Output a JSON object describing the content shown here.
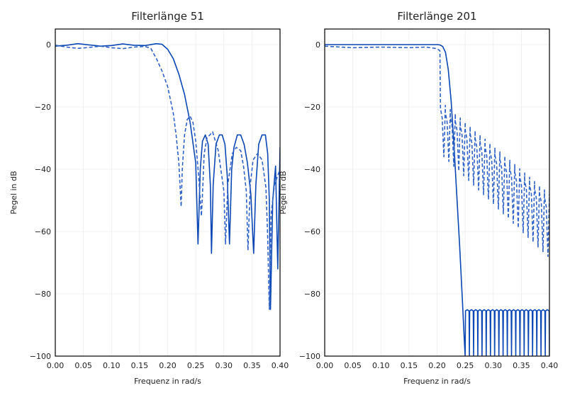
{
  "chart_data": [
    {
      "type": "line",
      "title": "Filterlänge 51",
      "xlabel": "Frequenz in rad/s",
      "ylabel": "Pegel in dB",
      "xlim": [
        0.0,
        0.4
      ],
      "ylim": [
        -100,
        5
      ],
      "xticks": [
        0.0,
        0.05,
        0.1,
        0.15,
        0.2,
        0.25,
        0.3,
        0.35,
        0.4
      ],
      "xtick_labels": [
        "0.00",
        "0.05",
        "0.10",
        "0.15",
        "0.20",
        "0.25",
        "0.30",
        "0.35",
        "0.40"
      ],
      "yticks": [
        0,
        -20,
        -40,
        -60,
        -80,
        -100
      ],
      "ytick_labels": [
        "0",
        "−20",
        "−40",
        "−60",
        "−80",
        "−100"
      ],
      "grid": true,
      "series": [
        {
          "style": "solid",
          "color": "#0a47b4",
          "x": [
            0.0,
            0.02,
            0.04,
            0.06,
            0.08,
            0.1,
            0.12,
            0.14,
            0.16,
            0.18,
            0.19,
            0.2,
            0.21,
            0.22,
            0.23,
            0.24,
            0.25,
            0.254,
            0.258,
            0.262,
            0.267,
            0.272,
            0.276,
            0.278,
            0.281,
            0.286,
            0.292,
            0.297,
            0.302,
            0.306,
            0.31,
            0.314,
            0.318,
            0.324,
            0.33,
            0.336,
            0.342,
            0.348,
            0.353,
            0.357,
            0.362,
            0.368,
            0.374,
            0.378,
            0.381,
            0.383,
            0.387,
            0.392,
            0.396,
            0.4
          ],
          "y": [
            -0.5,
            -0.2,
            0.3,
            -0.1,
            -0.5,
            -0.3,
            0.2,
            -0.2,
            -0.3,
            0.3,
            0.1,
            -1.5,
            -4.5,
            -9.5,
            -16,
            -25,
            -38,
            -64,
            -40,
            -31,
            -29,
            -32,
            -45,
            -67,
            -45,
            -32,
            -29,
            -29,
            -32,
            -42,
            -64,
            -40,
            -33,
            -29,
            -29,
            -32,
            -38,
            -48,
            -67,
            -45,
            -32,
            -29,
            -29,
            -35,
            -50,
            -85,
            -50,
            -39,
            -72,
            -33
          ]
        },
        {
          "style": "dashed",
          "color": "#2f62c6",
          "x": [
            0.0,
            0.02,
            0.04,
            0.06,
            0.08,
            0.1,
            0.12,
            0.14,
            0.16,
            0.17,
            0.18,
            0.19,
            0.2,
            0.21,
            0.215,
            0.22,
            0.224,
            0.226,
            0.23,
            0.235,
            0.24,
            0.245,
            0.25,
            0.255,
            0.26,
            0.262,
            0.265,
            0.27,
            0.28,
            0.29,
            0.3,
            0.303,
            0.307,
            0.315,
            0.322,
            0.33,
            0.335,
            0.34,
            0.343,
            0.347,
            0.352,
            0.36,
            0.368,
            0.375,
            0.378,
            0.381,
            0.384,
            0.39,
            0.4
          ],
          "y": [
            -0.2,
            -0.8,
            -1.2,
            -0.9,
            -0.5,
            -1.0,
            -1.3,
            -0.8,
            -0.6,
            -1.2,
            -4.5,
            -8.5,
            -13.5,
            -22,
            -29,
            -38,
            -52,
            -40,
            -29,
            -24,
            -23,
            -25,
            -31,
            -42,
            -55,
            -48,
            -35,
            -30,
            -28,
            -34,
            -47,
            -64,
            -45,
            -35,
            -33,
            -34,
            -39,
            -47,
            -66,
            -45,
            -37,
            -35,
            -37,
            -46,
            -62,
            -85,
            -55,
            -45,
            -40
          ]
        }
      ]
    },
    {
      "type": "line",
      "title": "Filterlänge 201",
      "xlabel": "Frequenz in rad/s",
      "ylabel": "Pegel in dB",
      "xlim": [
        0.0,
        0.4
      ],
      "ylim": [
        -100,
        5
      ],
      "xticks": [
        0.0,
        0.05,
        0.1,
        0.15,
        0.2,
        0.25,
        0.3,
        0.35,
        0.4
      ],
      "xtick_labels": [
        "0.00",
        "0.05",
        "0.10",
        "0.15",
        "0.20",
        "0.25",
        "0.30",
        "0.35",
        "0.40"
      ],
      "yticks": [
        0,
        -20,
        -40,
        -60,
        -80,
        -100
      ],
      "ytick_labels": [
        "0",
        "−20",
        "−40",
        "−60",
        "−80",
        "−100"
      ],
      "grid": true,
      "series": [
        {
          "style": "solid",
          "color": "#0a47b4",
          "x": [
            0.0,
            0.1,
            0.2,
            0.205,
            0.21,
            0.215,
            0.22,
            0.225,
            0.23,
            0.235,
            0.24,
            0.245,
            0.248,
            0.25
          ],
          "y": [
            0.0,
            0.0,
            0.0,
            -0.1,
            -0.6,
            -2.5,
            -8,
            -18,
            -32,
            -48,
            -64,
            -82,
            -93,
            -100
          ],
          "ripple": {
            "x_start": 0.25,
            "x_end": 0.4,
            "top": -85.5,
            "bottom": -100,
            "count": 20
          }
        },
        {
          "style": "dashed",
          "color": "#2f62c6",
          "x": [
            0.0,
            0.05,
            0.1,
            0.15,
            0.18,
            0.2,
            0.205
          ],
          "y": [
            -0.5,
            -1.0,
            -0.8,
            -1.0,
            -0.8,
            -1.3,
            -2.0
          ],
          "comb": {
            "x_start": 0.206,
            "x_end": 0.4,
            "top_start": -20.5,
            "top_end": -49,
            "bottom_start": -36,
            "bottom_end": -68,
            "count": 22
          }
        }
      ]
    }
  ]
}
